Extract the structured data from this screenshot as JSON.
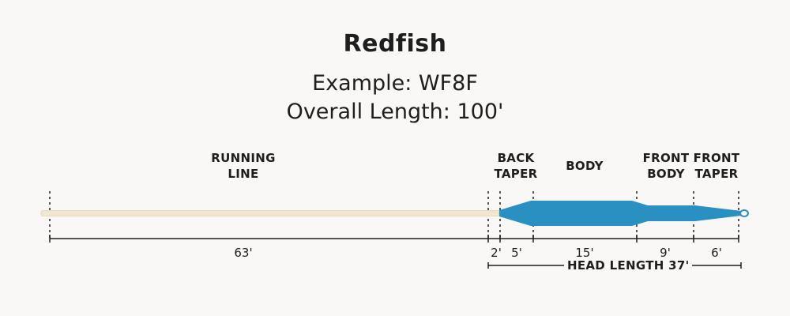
{
  "title": "Redfish",
  "example": "Example: WF8F",
  "overall_length": "Overall Length: 100'",
  "segments": {
    "running_line": [
      "RUNNING",
      "LINE"
    ],
    "back_taper": [
      "BACK",
      "TAPER"
    ],
    "body": "BODY",
    "front_body": [
      "FRONT",
      "BODY"
    ],
    "front_taper": [
      "FRONT",
      "TAPER"
    ]
  },
  "measurements": {
    "running_line": "63'",
    "unlabeled": "2'",
    "back_taper": "5'",
    "body": "15'",
    "front_body": "9'",
    "front_taper": "6'"
  },
  "head_length": "HEAD LENGTH 37'",
  "colors": {
    "running_line": "#f1e6d0",
    "head": "#2a90c2",
    "loop": "#2a90c2"
  }
}
